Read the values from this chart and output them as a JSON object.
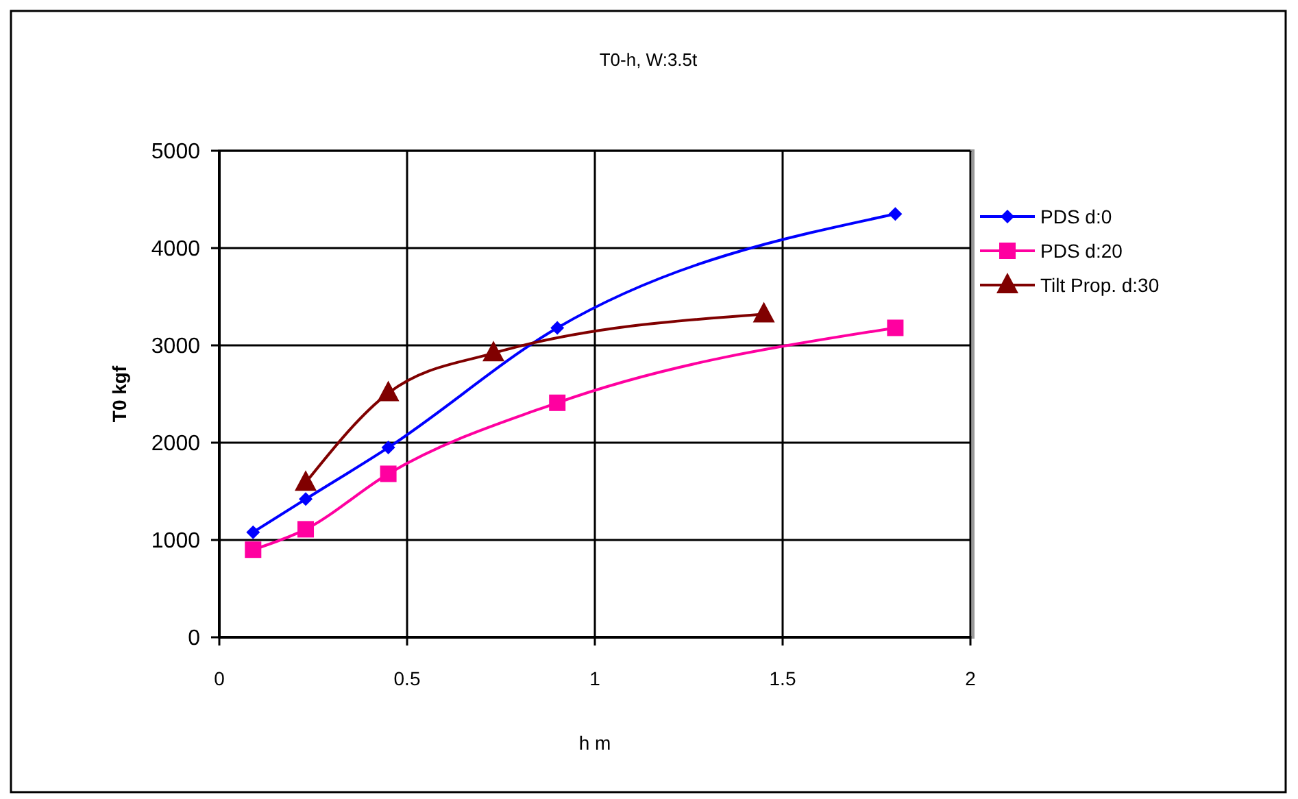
{
  "chart_data": {
    "type": "line",
    "title": "T0-h, W:3.5t",
    "xlabel": "h m",
    "ylabel": "T0 kgf",
    "xlim": [
      0,
      2
    ],
    "xticks": [
      0,
      0.5,
      1,
      1.5,
      2
    ],
    "ylim": [
      0,
      5000
    ],
    "yticks": [
      0,
      1000,
      2000,
      3000,
      4000,
      5000
    ],
    "grid": true,
    "legend": "right",
    "line_style": "solid",
    "series": [
      {
        "name": "PDS d:0",
        "color": "#0000ff",
        "marker": "diamond",
        "x": [
          0.09,
          0.23,
          0.45,
          0.9,
          1.8
        ],
        "values": [
          1080,
          1420,
          1950,
          3180,
          4350
        ]
      },
      {
        "name": "PDS d:20",
        "color": "#ff00a0",
        "marker": "square",
        "x": [
          0.09,
          0.23,
          0.45,
          0.9,
          1.8
        ],
        "values": [
          900,
          1110,
          1680,
          2410,
          3180
        ]
      },
      {
        "name": "Tilt Prop. d:30",
        "color": "#800000",
        "marker": "triangle",
        "x": [
          0.23,
          0.45,
          0.73,
          1.45
        ],
        "values": [
          1590,
          2510,
          2920,
          3320
        ]
      }
    ]
  }
}
